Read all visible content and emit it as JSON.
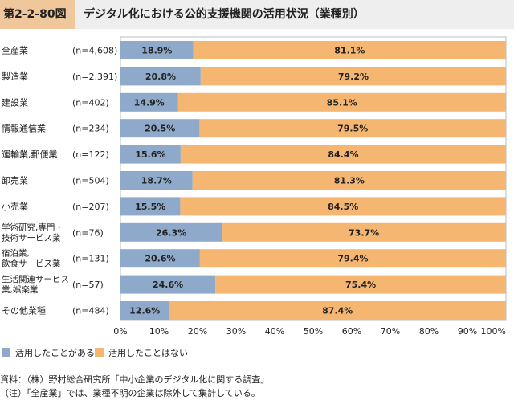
{
  "figure": {
    "number": "第2-2-80図",
    "title": "デジタル化における公的支援機関の活用状況（業種別）"
  },
  "chart_data": {
    "type": "bar",
    "orientation": "horizontal",
    "stacked": true,
    "percent_stacked": true,
    "categories": [
      {
        "lines": [
          "全産業"
        ],
        "n": "(n=4,608)"
      },
      {
        "lines": [
          "製造業"
        ],
        "n": "(n=2,391)"
      },
      {
        "lines": [
          "建設業"
        ],
        "n": "(n=402)"
      },
      {
        "lines": [
          "情報通信業"
        ],
        "n": "(n=234)"
      },
      {
        "lines": [
          "運輸業,郵便業"
        ],
        "n": "(n=122)"
      },
      {
        "lines": [
          "卸売業"
        ],
        "n": "(n=504)"
      },
      {
        "lines": [
          "小売業"
        ],
        "n": "(n=207)"
      },
      {
        "lines": [
          "学術研究,専門・",
          "技術サービス業"
        ],
        "n": "(n=76)"
      },
      {
        "lines": [
          "宿泊業,",
          "飲食サービス業"
        ],
        "n": "(n=131)"
      },
      {
        "lines": [
          "生活関連サービス",
          "業,娯楽業"
        ],
        "n": "(n=57)"
      },
      {
        "lines": [
          "その他業種"
        ],
        "n": "(n=484)"
      }
    ],
    "series": [
      {
        "name": "活用したことがある",
        "color": "#8ea9c9",
        "values": [
          18.9,
          20.8,
          14.9,
          20.5,
          15.6,
          18.7,
          15.5,
          26.3,
          20.6,
          24.6,
          12.6
        ]
      },
      {
        "name": "活用したことはない",
        "color": "#f5b672",
        "values": [
          81.1,
          79.2,
          85.1,
          79.5,
          84.4,
          81.3,
          84.5,
          73.7,
          79.4,
          75.4,
          87.4
        ]
      }
    ],
    "value_suffix": "%",
    "xlim": [
      0,
      100
    ],
    "xticks": [
      "0%",
      "10%",
      "20%",
      "30%",
      "40%",
      "50%",
      "60%",
      "70%",
      "80%",
      "90%",
      "100%"
    ],
    "legend_position": "bottom-left",
    "grid": false
  },
  "notes": {
    "source": "資料：（株）野村総合研究所「中小企業のデジタル化に関する調査」",
    "note": "（注）「全産業」では、業種不明の企業は除外して集計している。"
  }
}
